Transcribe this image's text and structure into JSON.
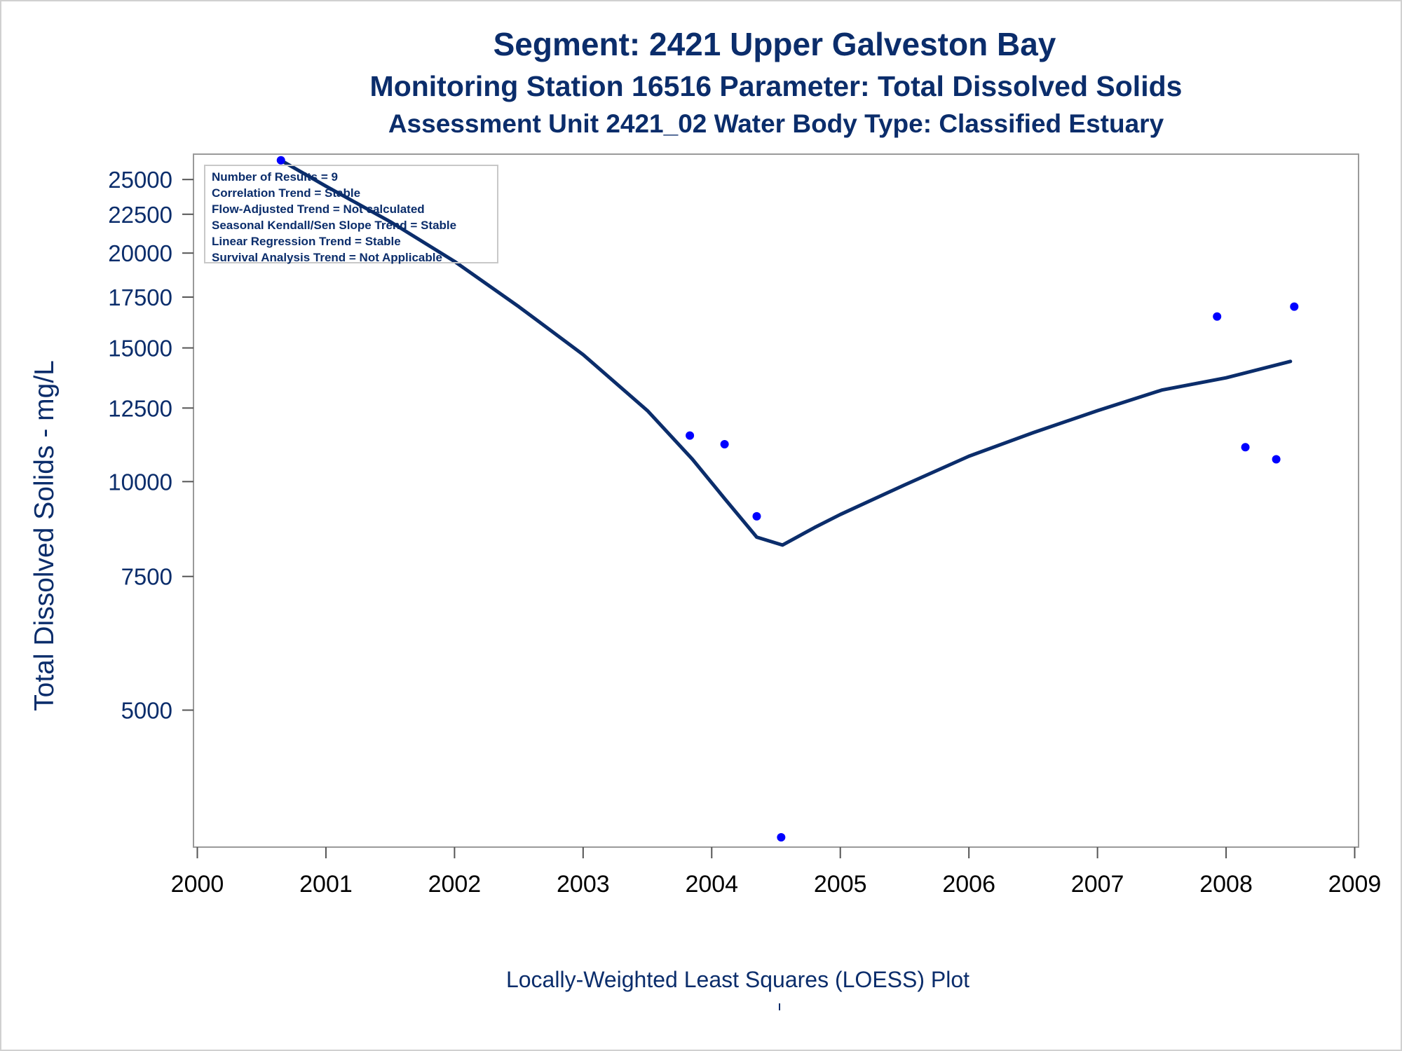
{
  "chart_data": {
    "type": "scatter",
    "title": "Segment: 2421  Upper Galveston Bay",
    "subtitle": "Monitoring Station 16516 Parameter: Total Dissolved Solids",
    "subtitle2": "Assessment Unit 2421_02   Water Body Type: Classified Estuary",
    "ylabel": "Total Dissolved Solids - mg/L",
    "xlabel": "",
    "yscale": "log",
    "ylim": [
      3300,
      27000
    ],
    "xlim": [
      1999.97,
      2009.03
    ],
    "yticks": [
      5000,
      7500,
      10000,
      12500,
      15000,
      17500,
      20000,
      22500,
      25000
    ],
    "ytick_labels": [
      "5000",
      "7500",
      "10000",
      "12500",
      "15000",
      "17500",
      "20000",
      "22500",
      "25000"
    ],
    "xticks": [
      2000,
      2001,
      2002,
      2003,
      2004,
      2005,
      2006,
      2007,
      2008,
      2009
    ],
    "xtick_labels": [
      "2000",
      "2001",
      "2002",
      "2003",
      "2004",
      "2005",
      "2006",
      "2007",
      "2008",
      "2009"
    ],
    "grid": false,
    "series": [
      {
        "kind": "points",
        "color": "#0000ff",
        "x": [
          2000.65,
          2003.83,
          2004.1,
          2004.35,
          2004.54,
          2007.93,
          2008.15,
          2008.39,
          2008.53
        ],
        "y": [
          26500,
          11500,
          11200,
          9000,
          3400,
          16500,
          11100,
          10700,
          17000
        ]
      },
      {
        "kind": "loess",
        "color": "#0b2d6b",
        "x": [
          2000.65,
          2001.0,
          2001.5,
          2002.0,
          2002.5,
          2003.0,
          2003.5,
          2003.85,
          2004.1,
          2004.35,
          2004.55,
          2004.8,
          2005.0,
          2005.5,
          2006.0,
          2006.5,
          2007.0,
          2007.5,
          2008.0,
          2008.5
        ],
        "y": [
          26500,
          24500,
          22000,
          19500,
          17000,
          14700,
          12400,
          10700,
          9500,
          8450,
          8250,
          8700,
          9050,
          9900,
          10800,
          11600,
          12400,
          13200,
          13700,
          14400
        ]
      }
    ]
  },
  "stats_box": {
    "lines": [
      "Number of Results = 9",
      "Correlation Trend = Stable",
      "Flow-Adjusted Trend = Not calculated",
      "Seasonal Kendall/Sen Slope Trend = Stable",
      "Linear Regression Trend = Stable",
      "Survival Analysis Trend = Not Applicable"
    ]
  },
  "footnote": "Locally-Weighted Least Squares (LOESS) Plot"
}
